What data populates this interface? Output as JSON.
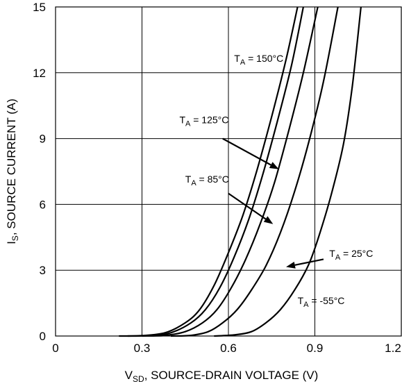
{
  "chart_data": {
    "type": "line",
    "title": "",
    "xlabel": "SD, SOURCE-DRAIN VOLTAGE (V)",
    "xlabel_prefix": "V",
    "xlabel_sub": "SD",
    "xlabel_rest": ", SOURCE-DRAIN VOLTAGE (V)",
    "ylabel_prefix": "I",
    "ylabel_sub": "S",
    "ylabel_rest": ", SOURCE CURRENT (A)",
    "xlim": [
      0,
      1.2
    ],
    "ylim": [
      0,
      15
    ],
    "xticks": [
      0,
      0.3,
      0.6,
      0.9,
      1.2
    ],
    "xtick_labels": [
      "0",
      "0.3",
      "0.6",
      "0.9",
      "1.2"
    ],
    "yticks": [
      0,
      3,
      6,
      9,
      12,
      15
    ],
    "ytick_labels": [
      "0",
      "3",
      "6",
      "9",
      "12",
      "15"
    ],
    "grid": true,
    "series": [
      {
        "label": "150°C",
        "points": [
          [
            0.22,
            0.0
          ],
          [
            0.3,
            0.02
          ],
          [
            0.38,
            0.15
          ],
          [
            0.45,
            0.6
          ],
          [
            0.5,
            1.2
          ],
          [
            0.55,
            2.3
          ],
          [
            0.6,
            3.8
          ],
          [
            0.65,
            5.5
          ],
          [
            0.7,
            7.6
          ],
          [
            0.75,
            10.0
          ],
          [
            0.8,
            12.6
          ],
          [
            0.84,
            15.0
          ]
        ]
      },
      {
        "label": "125°C",
        "points": [
          [
            0.25,
            0.0
          ],
          [
            0.33,
            0.02
          ],
          [
            0.4,
            0.15
          ],
          [
            0.47,
            0.6
          ],
          [
            0.52,
            1.2
          ],
          [
            0.57,
            2.2
          ],
          [
            0.62,
            3.6
          ],
          [
            0.67,
            5.3
          ],
          [
            0.72,
            7.4
          ],
          [
            0.77,
            9.8
          ],
          [
            0.82,
            12.4
          ],
          [
            0.86,
            15.0
          ]
        ]
      },
      {
        "label": "85°C",
        "points": [
          [
            0.3,
            0.0
          ],
          [
            0.38,
            0.03
          ],
          [
            0.45,
            0.2
          ],
          [
            0.51,
            0.6
          ],
          [
            0.56,
            1.2
          ],
          [
            0.61,
            2.2
          ],
          [
            0.66,
            3.5
          ],
          [
            0.71,
            5.1
          ],
          [
            0.76,
            7.0
          ],
          [
            0.81,
            9.4
          ],
          [
            0.86,
            12.0
          ],
          [
            0.91,
            15.0
          ]
        ]
      },
      {
        "label": "25°C",
        "points": [
          [
            0.4,
            0.0
          ],
          [
            0.47,
            0.03
          ],
          [
            0.53,
            0.2
          ],
          [
            0.58,
            0.6
          ],
          [
            0.63,
            1.2
          ],
          [
            0.68,
            2.1
          ],
          [
            0.73,
            3.2
          ],
          [
            0.78,
            4.7
          ],
          [
            0.83,
            6.6
          ],
          [
            0.88,
            8.9
          ],
          [
            0.93,
            11.6
          ],
          [
            0.98,
            15.0
          ]
        ]
      },
      {
        "label": "-55°C",
        "points": [
          [
            0.55,
            0.0
          ],
          [
            0.62,
            0.05
          ],
          [
            0.68,
            0.2
          ],
          [
            0.73,
            0.6
          ],
          [
            0.78,
            1.2
          ],
          [
            0.83,
            2.1
          ],
          [
            0.88,
            3.3
          ],
          [
            0.92,
            4.8
          ],
          [
            0.96,
            6.6
          ],
          [
            1.0,
            8.8
          ],
          [
            1.03,
            11.4
          ],
          [
            1.06,
            15.0
          ]
        ]
      }
    ],
    "annotations": [
      {
        "id": "150",
        "prefix": "T",
        "sub": "A",
        "text": " = 150°C",
        "at": [
          0.62,
          12.5
        ],
        "arrow_to": null
      },
      {
        "id": "125",
        "prefix": "T",
        "sub": "A",
        "text": " = 125°C",
        "at": [
          0.43,
          9.7
        ],
        "arrow_from": [
          0.58,
          9.0
        ],
        "arrow_to": [
          0.775,
          7.6
        ]
      },
      {
        "id": "85",
        "prefix": "T",
        "sub": "A",
        "text": " = 85°C",
        "at": [
          0.45,
          7.0
        ],
        "arrow_from": [
          0.6,
          6.5
        ],
        "arrow_to": [
          0.755,
          5.1
        ]
      },
      {
        "id": "25",
        "prefix": "T",
        "sub": "A",
        "text": " = 25°C",
        "at": [
          0.95,
          3.6
        ],
        "arrow_from": [
          0.93,
          3.5
        ],
        "arrow_to": [
          0.8,
          3.15
        ]
      },
      {
        "id": "-55",
        "prefix": "T",
        "sub": "A",
        "text": " = -55°C",
        "at": [
          0.84,
          1.45
        ],
        "arrow_to": null
      }
    ]
  }
}
